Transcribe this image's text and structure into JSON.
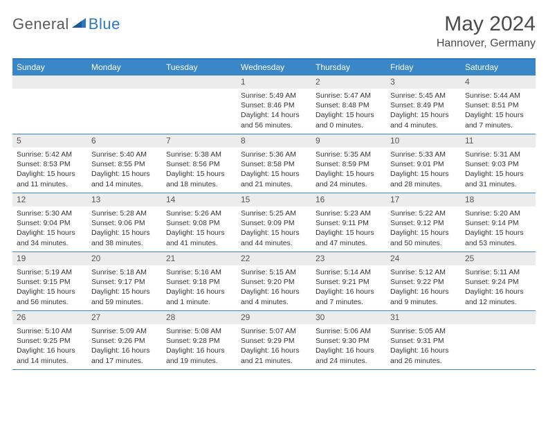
{
  "logo": {
    "general": "General",
    "blue": "Blue"
  },
  "title": "May 2024",
  "location": "Hannover, Germany",
  "colors": {
    "header_bg": "#3a87c7",
    "border": "#2f78bd",
    "daynum_bg": "#ececec",
    "text": "#333333",
    "title_text": "#4a4a4a"
  },
  "day_labels": [
    "Sunday",
    "Monday",
    "Tuesday",
    "Wednesday",
    "Thursday",
    "Friday",
    "Saturday"
  ],
  "weeks": [
    [
      null,
      null,
      null,
      {
        "n": "1",
        "sr": "5:49 AM",
        "ss": "8:46 PM",
        "dl": "14 hours and 56 minutes."
      },
      {
        "n": "2",
        "sr": "5:47 AM",
        "ss": "8:48 PM",
        "dl": "15 hours and 0 minutes."
      },
      {
        "n": "3",
        "sr": "5:45 AM",
        "ss": "8:49 PM",
        "dl": "15 hours and 4 minutes."
      },
      {
        "n": "4",
        "sr": "5:44 AM",
        "ss": "8:51 PM",
        "dl": "15 hours and 7 minutes."
      }
    ],
    [
      {
        "n": "5",
        "sr": "5:42 AM",
        "ss": "8:53 PM",
        "dl": "15 hours and 11 minutes."
      },
      {
        "n": "6",
        "sr": "5:40 AM",
        "ss": "8:55 PM",
        "dl": "15 hours and 14 minutes."
      },
      {
        "n": "7",
        "sr": "5:38 AM",
        "ss": "8:56 PM",
        "dl": "15 hours and 18 minutes."
      },
      {
        "n": "8",
        "sr": "5:36 AM",
        "ss": "8:58 PM",
        "dl": "15 hours and 21 minutes."
      },
      {
        "n": "9",
        "sr": "5:35 AM",
        "ss": "8:59 PM",
        "dl": "15 hours and 24 minutes."
      },
      {
        "n": "10",
        "sr": "5:33 AM",
        "ss": "9:01 PM",
        "dl": "15 hours and 28 minutes."
      },
      {
        "n": "11",
        "sr": "5:31 AM",
        "ss": "9:03 PM",
        "dl": "15 hours and 31 minutes."
      }
    ],
    [
      {
        "n": "12",
        "sr": "5:30 AM",
        "ss": "9:04 PM",
        "dl": "15 hours and 34 minutes."
      },
      {
        "n": "13",
        "sr": "5:28 AM",
        "ss": "9:06 PM",
        "dl": "15 hours and 38 minutes."
      },
      {
        "n": "14",
        "sr": "5:26 AM",
        "ss": "9:08 PM",
        "dl": "15 hours and 41 minutes."
      },
      {
        "n": "15",
        "sr": "5:25 AM",
        "ss": "9:09 PM",
        "dl": "15 hours and 44 minutes."
      },
      {
        "n": "16",
        "sr": "5:23 AM",
        "ss": "9:11 PM",
        "dl": "15 hours and 47 minutes."
      },
      {
        "n": "17",
        "sr": "5:22 AM",
        "ss": "9:12 PM",
        "dl": "15 hours and 50 minutes."
      },
      {
        "n": "18",
        "sr": "5:20 AM",
        "ss": "9:14 PM",
        "dl": "15 hours and 53 minutes."
      }
    ],
    [
      {
        "n": "19",
        "sr": "5:19 AM",
        "ss": "9:15 PM",
        "dl": "15 hours and 56 minutes."
      },
      {
        "n": "20",
        "sr": "5:18 AM",
        "ss": "9:17 PM",
        "dl": "15 hours and 59 minutes."
      },
      {
        "n": "21",
        "sr": "5:16 AM",
        "ss": "9:18 PM",
        "dl": "16 hours and 1 minute."
      },
      {
        "n": "22",
        "sr": "5:15 AM",
        "ss": "9:20 PM",
        "dl": "16 hours and 4 minutes."
      },
      {
        "n": "23",
        "sr": "5:14 AM",
        "ss": "9:21 PM",
        "dl": "16 hours and 7 minutes."
      },
      {
        "n": "24",
        "sr": "5:12 AM",
        "ss": "9:22 PM",
        "dl": "16 hours and 9 minutes."
      },
      {
        "n": "25",
        "sr": "5:11 AM",
        "ss": "9:24 PM",
        "dl": "16 hours and 12 minutes."
      }
    ],
    [
      {
        "n": "26",
        "sr": "5:10 AM",
        "ss": "9:25 PM",
        "dl": "16 hours and 14 minutes."
      },
      {
        "n": "27",
        "sr": "5:09 AM",
        "ss": "9:26 PM",
        "dl": "16 hours and 17 minutes."
      },
      {
        "n": "28",
        "sr": "5:08 AM",
        "ss": "9:28 PM",
        "dl": "16 hours and 19 minutes."
      },
      {
        "n": "29",
        "sr": "5:07 AM",
        "ss": "9:29 PM",
        "dl": "16 hours and 21 minutes."
      },
      {
        "n": "30",
        "sr": "5:06 AM",
        "ss": "9:30 PM",
        "dl": "16 hours and 24 minutes."
      },
      {
        "n": "31",
        "sr": "5:05 AM",
        "ss": "9:31 PM",
        "dl": "16 hours and 26 minutes."
      },
      null
    ]
  ],
  "labels": {
    "sunrise": "Sunrise: ",
    "sunset": "Sunset: ",
    "daylight": "Daylight: "
  }
}
